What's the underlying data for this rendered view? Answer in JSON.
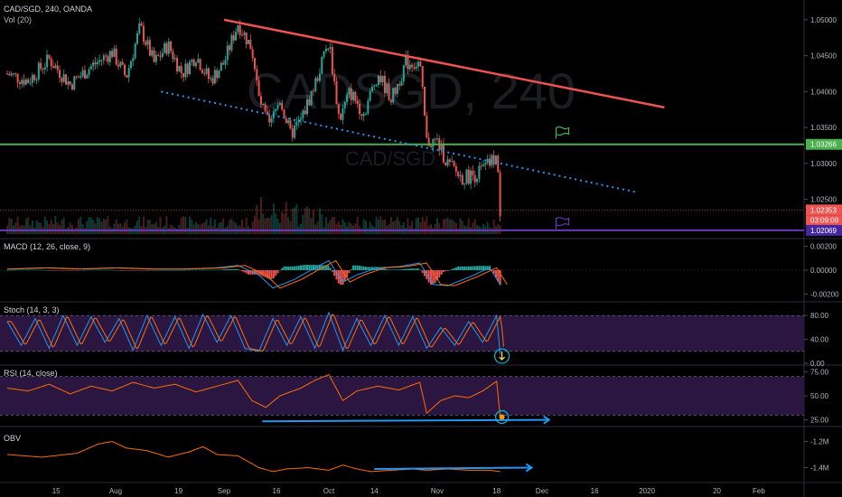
{
  "header": {
    "symbol_line": "CAD/SGD, 240, OANDA",
    "vol_label": "Vol (20)"
  },
  "watermark": {
    "big": "CADSGD, 240",
    "small": "CAD/SGD"
  },
  "colors": {
    "background": "#000000",
    "up_candle": "#26a69a",
    "down_candle": "#ef5350",
    "resistance": "#ef5350",
    "support_dotted": "#2196f3",
    "support_level": "#4caf50",
    "lower_level": "#673ab7",
    "macd_line": "#2196f3",
    "signal_line": "#ff6d00",
    "stoch_k": "#2196f3",
    "stoch_d": "#ff6d00",
    "rsi": "#ff6d00",
    "obv": "#ff6d00",
    "cyan_mark": "#00bcd4"
  },
  "price_axis": {
    "ticks": [
      "1.05000",
      "1.04500",
      "1.04000",
      "1.03500",
      "1.03000",
      "1.02500"
    ],
    "tick_values": [
      1.05,
      1.045,
      1.04,
      1.035,
      1.03,
      1.025
    ],
    "range": [
      1.0198,
      1.0525
    ],
    "green_level": {
      "label": "1.03266",
      "value": 1.03266
    },
    "last_price": {
      "label": "1.02353",
      "value": 1.02353,
      "countdown": "03:09:09"
    },
    "purple_level": {
      "label": "1.02069",
      "value": 1.02069
    }
  },
  "x_axis": {
    "labels": [
      "15",
      "Aug",
      "19",
      "Sep",
      "16",
      "Oct",
      "14",
      "Nov",
      "18",
      "Dec",
      "16",
      "2020",
      "20",
      "Feb"
    ],
    "label_days": [
      14,
      31,
      49,
      62,
      77,
      92,
      105,
      123,
      140,
      153,
      168,
      183,
      203,
      215
    ]
  },
  "macd": {
    "label": "MACD (12, 26, close, 9)",
    "ticks": [
      "0.00200",
      "0.00000",
      "-0.00200"
    ],
    "tick_values": [
      0.002,
      0,
      -0.002
    ],
    "range": [
      -0.0025,
      0.0025
    ]
  },
  "stoch": {
    "label": "Stoch (14, 3, 3)",
    "ticks": [
      "80.00",
      "40.00",
      "0.00"
    ],
    "tick_values": [
      80,
      40,
      0
    ],
    "band": [
      20,
      80
    ],
    "range": [
      0,
      100
    ]
  },
  "rsi": {
    "label": "RSI (14, close)",
    "ticks": [
      "75.00",
      "50.00",
      "25.00"
    ],
    "tick_values": [
      75,
      50,
      25
    ],
    "band": [
      30,
      70
    ],
    "range": [
      20,
      80
    ]
  },
  "obv": {
    "label": "OBV",
    "ticks": [
      "-1.2M",
      "-1.4M"
    ],
    "tick_values": [
      -1.2,
      -1.4
    ],
    "range": [
      -1.5,
      -1.1
    ]
  },
  "chart_data": {
    "type": "candlestick",
    "title": "CAD/SGD, 240, OANDA",
    "price_close_trace": {
      "x_day": [
        0,
        6,
        12,
        18,
        24,
        30,
        34,
        38,
        42,
        46,
        50,
        54,
        58,
        62,
        66,
        70,
        72,
        75,
        78,
        81,
        84,
        88,
        92,
        95,
        98,
        102,
        106,
        110,
        114,
        118,
        120,
        123,
        126,
        130,
        134,
        137,
        140,
        141
      ],
      "close": [
        1.0425,
        1.0415,
        1.0445,
        1.041,
        1.0435,
        1.0455,
        1.042,
        1.049,
        1.044,
        1.0465,
        1.0425,
        1.045,
        1.0415,
        1.044,
        1.0495,
        1.046,
        1.039,
        1.035,
        1.039,
        1.034,
        1.036,
        1.041,
        1.047,
        1.036,
        1.04,
        1.037,
        1.0425,
        1.039,
        1.044,
        1.044,
        1.033,
        1.033,
        1.03,
        1.028,
        1.0285,
        1.0295,
        1.031,
        1.0235
      ]
    },
    "macd_trace": {
      "x_day": [
        0,
        10,
        20,
        30,
        40,
        50,
        60,
        66,
        72,
        76,
        82,
        88,
        92,
        96,
        100,
        106,
        112,
        118,
        122,
        126,
        132,
        138,
        141
      ],
      "macd": [
        0.0001,
        0.0002,
        0.0001,
        0.0002,
        0.0001,
        0.0001,
        0.0002,
        0.0004,
        -0.0004,
        -0.0015,
        -0.0008,
        0.0002,
        0.0008,
        -0.001,
        -0.0004,
        0.0002,
        0.0003,
        0.0006,
        -0.0012,
        -0.0013,
        -0.0006,
        0.0002,
        -0.0012
      ]
    },
    "stoch_trace": {
      "x_day": [
        0,
        4,
        8,
        12,
        16,
        20,
        24,
        28,
        32,
        36,
        40,
        44,
        48,
        52,
        56,
        60,
        64,
        68,
        72,
        76,
        80,
        84,
        88,
        92,
        96,
        100,
        104,
        108,
        112,
        116,
        120,
        124,
        128,
        132,
        136,
        140,
        141
      ],
      "k": [
        70,
        30,
        75,
        25,
        80,
        30,
        78,
        35,
        75,
        22,
        80,
        30,
        78,
        25,
        82,
        35,
        80,
        25,
        20,
        75,
        30,
        78,
        25,
        85,
        22,
        75,
        30,
        80,
        30,
        78,
        25,
        60,
        30,
        70,
        35,
        80,
        15
      ]
    },
    "rsi_trace": {
      "x_day": [
        0,
        6,
        12,
        18,
        24,
        30,
        36,
        42,
        48,
        54,
        60,
        66,
        70,
        74,
        78,
        84,
        88,
        92,
        96,
        100,
        106,
        112,
        118,
        120,
        124,
        128,
        132,
        136,
        140,
        141
      ],
      "rsi": [
        58,
        55,
        62,
        52,
        60,
        55,
        64,
        58,
        62,
        54,
        60,
        66,
        45,
        38,
        50,
        58,
        66,
        72,
        45,
        55,
        60,
        56,
        64,
        32,
        45,
        50,
        48,
        55,
        65,
        28
      ]
    },
    "obv_trace": {
      "x_day": [
        0,
        10,
        20,
        26,
        30,
        34,
        40,
        46,
        52,
        56,
        60,
        66,
        72,
        76,
        80,
        86,
        92,
        96,
        100,
        104,
        110,
        116,
        120,
        126,
        132,
        138,
        141
      ],
      "obv": [
        -1.3,
        -1.32,
        -1.29,
        -1.22,
        -1.2,
        -1.25,
        -1.27,
        -1.32,
        -1.28,
        -1.24,
        -1.3,
        -1.31,
        -1.4,
        -1.43,
        -1.41,
        -1.4,
        -1.42,
        -1.38,
        -1.41,
        -1.43,
        -1.42,
        -1.41,
        -1.42,
        -1.41,
        -1.42,
        -1.42,
        -1.43
      ]
    },
    "trendlines": {
      "resistance": {
        "from": [
          62,
          1.05
        ],
        "to": [
          188,
          1.0378
        ]
      },
      "support_dotted": {
        "from": [
          44,
          1.04
        ],
        "to": [
          180,
          1.026
        ]
      },
      "rsi_divergence": {
        "from": [
          73,
          23.5
        ],
        "to": [
          155,
          25.0
        ]
      },
      "obv_divergence": {
        "from": [
          105,
          -1.41
        ],
        "to": [
          150,
          -1.4
        ]
      }
    },
    "markers": [
      {
        "name": "green-flag",
        "day": 157,
        "value": 1.0342
      },
      {
        "name": "purple-flag",
        "day": 157,
        "value": 1.0216
      }
    ],
    "x_range_days": [
      0,
      230
    ]
  }
}
